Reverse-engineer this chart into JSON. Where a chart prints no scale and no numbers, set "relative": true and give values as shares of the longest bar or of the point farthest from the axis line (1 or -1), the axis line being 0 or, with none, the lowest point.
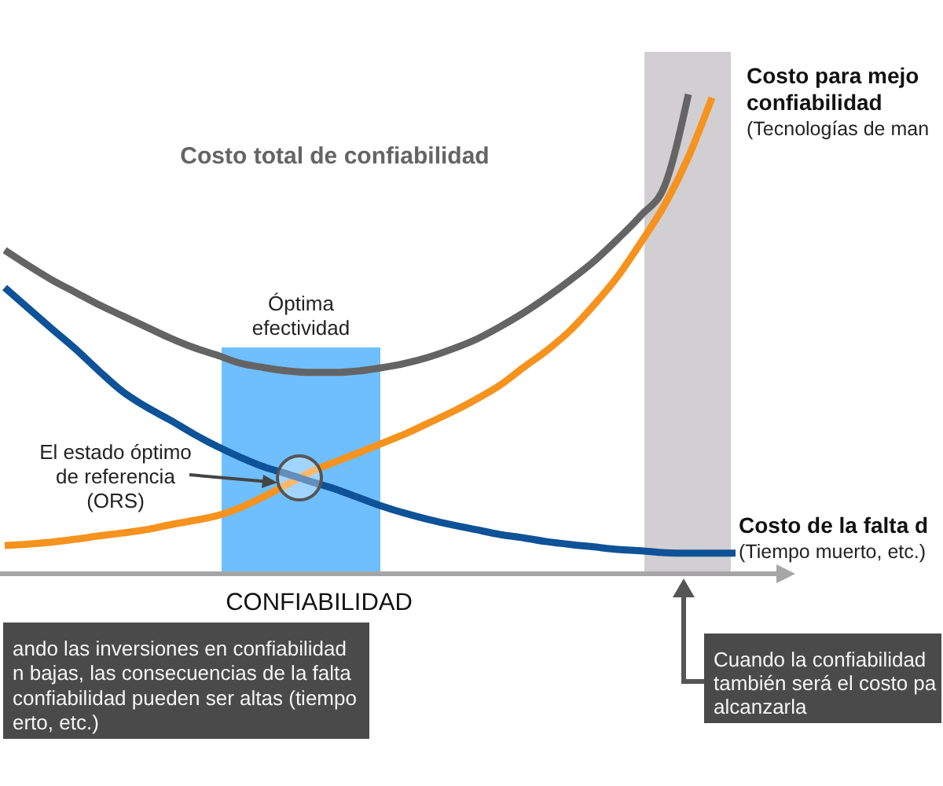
{
  "chart_data": {
    "type": "line",
    "relative": true,
    "xlabel": "CONFIABILIDAD",
    "categories": [
      null,
      null,
      null,
      null,
      null,
      null,
      null,
      null,
      null,
      null,
      null,
      null,
      null,
      null,
      null,
      null,
      null,
      null,
      null,
      null,
      null,
      null,
      null,
      null,
      null,
      null,
      null,
      null,
      null,
      null,
      null,
      null
    ],
    "series": [
      {
        "name": "Costo total de confiabilidad",
        "color": "#646464",
        "values": [
          0.675,
          0.643,
          0.613,
          0.587,
          0.561,
          0.538,
          0.515,
          0.492,
          0.472,
          0.456,
          0.439,
          0.43,
          0.423,
          0.42,
          0.42,
          0.423,
          0.43,
          0.439,
          0.452,
          0.469,
          0.489,
          0.515,
          0.544,
          0.577,
          0.613,
          0.652,
          0.698,
          0.748,
          0.81,
          1,
          null,
          null
        ]
      },
      {
        "name": "Costo para mejo confiabilidad",
        "color": "#f6921e",
        "values": [
          0.059,
          0.062,
          0.066,
          0.072,
          0.079,
          0.085,
          0.092,
          0.102,
          0.111,
          0.121,
          0.138,
          0.161,
          0.187,
          0.213,
          0.233,
          0.252,
          0.272,
          0.292,
          0.315,
          0.338,
          0.364,
          0.393,
          0.43,
          0.466,
          0.508,
          0.561,
          0.62,
          0.692,
          0.77,
          0.869,
          0.993,
          null
        ]
      },
      {
        "name": "Costo de la falta d",
        "color": "#0e5297",
        "values": [
          0.597,
          0.554,
          0.511,
          0.469,
          0.423,
          0.38,
          0.348,
          0.321,
          0.292,
          0.266,
          0.243,
          0.223,
          0.208,
          0.192,
          0.177,
          0.159,
          0.141,
          0.126,
          0.113,
          0.102,
          0.092,
          0.082,
          0.075,
          0.067,
          0.061,
          0.056,
          0.051,
          0.048,
          0.044,
          0.043,
          0.043,
          0.043
        ]
      }
    ],
    "annotations": [
      "El estado óptimo de referencia (ORS)",
      "ando las inversiones en confiabilidad n bajas, las consecuencias de la falta confiabilidad pueden ser altas (tiempo erto, etc.)",
      "Cuando la confiabilidad también será el costo pa alcanzarla",
      "(Tecnologías de man",
      "(Tiempo muerto, etc.)",
      "Óptima efectividad"
    ]
  }
}
